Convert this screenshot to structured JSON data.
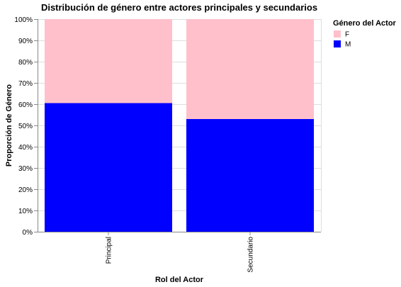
{
  "chart_data": {
    "type": "bar",
    "stacked": true,
    "normalized": true,
    "title": "Distribución de género entre actores principales y secundarios",
    "xlabel": "Rol del Actor",
    "ylabel": "Proporción de Género",
    "categories": [
      "Principal",
      "Secundario"
    ],
    "series": [
      {
        "name": "M",
        "color": "#0000ff",
        "values": [
          0.605,
          0.53
        ]
      },
      {
        "name": "F",
        "color": "#ffc0cb",
        "values": [
          0.395,
          0.47
        ]
      }
    ],
    "ylim": [
      0,
      1
    ],
    "yticks": [
      "0%",
      "10%",
      "20%",
      "30%",
      "40%",
      "50%",
      "60%",
      "70%",
      "80%",
      "90%",
      "100%"
    ],
    "grid": true,
    "legend": {
      "title": "Género del Actor",
      "placement": "top-right",
      "entries": [
        {
          "label": "F",
          "color": "#ffc0cb"
        },
        {
          "label": "M",
          "color": "#0000ff"
        }
      ]
    }
  }
}
